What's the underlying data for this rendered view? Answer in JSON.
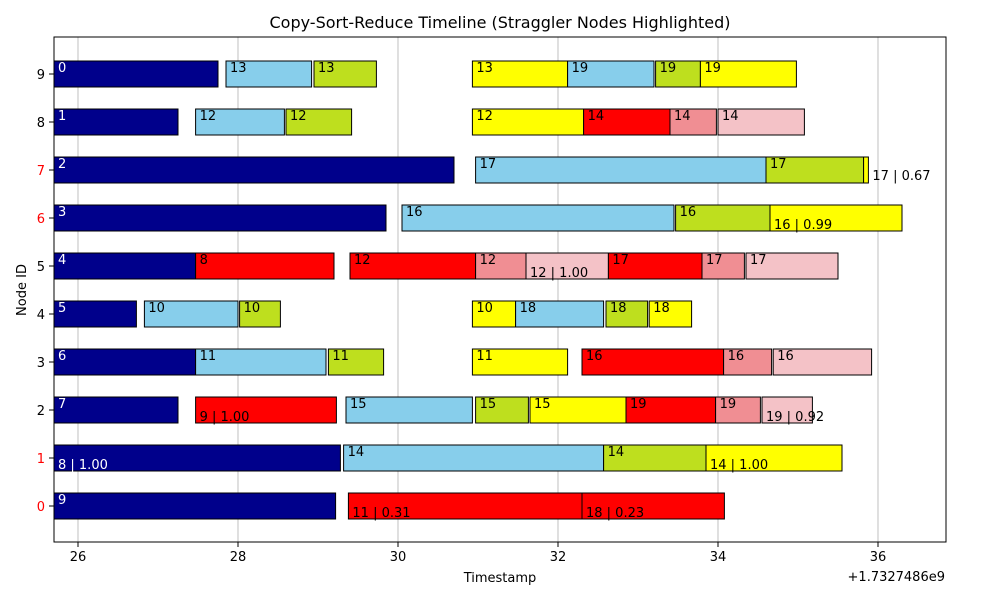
{
  "chart_data": {
    "type": "gantt",
    "title": "Copy-Sort-Reduce Timeline (Straggler Nodes Highlighted)",
    "xlabel": "Timestamp",
    "ylabel": "Node ID",
    "x_offset_label": "+1.7327486e9",
    "xlim": [
      25.7,
      36.85
    ],
    "x_ticks": [
      26,
      28,
      30,
      32,
      34,
      36
    ],
    "y_ticks": [
      0,
      1,
      2,
      3,
      4,
      5,
      6,
      7,
      8,
      9
    ],
    "straggler_nodes": [
      0,
      1,
      6,
      7
    ],
    "grid": "x",
    "colors": {
      "init": "#00008b",
      "copy": "#87ceeb",
      "sort": "#bedf1e",
      "reduce": "#ffff00",
      "straggler": "#ff0000",
      "straggler_sort": "#f08e93",
      "straggler_reduce": "#f4c2c7",
      "straggler_tick": "#ff0000",
      "normal_tick": "#000000"
    },
    "bars": [
      {
        "node": 9,
        "start": 25.7,
        "end": 27.75,
        "phase": "init",
        "label": "0"
      },
      {
        "node": 9,
        "start": 27.85,
        "end": 28.92,
        "phase": "copy",
        "label": "13"
      },
      {
        "node": 9,
        "start": 28.95,
        "end": 29.73,
        "phase": "sort",
        "label": "13"
      },
      {
        "node": 9,
        "start": 30.93,
        "end": 32.12,
        "phase": "reduce",
        "label": "13"
      },
      {
        "node": 9,
        "start": 32.12,
        "end": 33.2,
        "phase": "copy",
        "label": "19"
      },
      {
        "node": 9,
        "start": 33.22,
        "end": 33.78,
        "phase": "sort",
        "label": "19"
      },
      {
        "node": 9,
        "start": 33.78,
        "end": 34.98,
        "phase": "reduce",
        "label": "19"
      },
      {
        "node": 8,
        "start": 25.7,
        "end": 27.25,
        "phase": "init",
        "label": "1"
      },
      {
        "node": 8,
        "start": 27.47,
        "end": 28.58,
        "phase": "copy",
        "label": "12"
      },
      {
        "node": 8,
        "start": 28.6,
        "end": 29.42,
        "phase": "sort",
        "label": "12"
      },
      {
        "node": 8,
        "start": 30.93,
        "end": 32.32,
        "phase": "reduce",
        "label": "12"
      },
      {
        "node": 8,
        "start": 32.32,
        "end": 33.4,
        "phase": "straggler",
        "label": "14"
      },
      {
        "node": 8,
        "start": 33.4,
        "end": 33.98,
        "phase": "straggler_sort",
        "label": "14"
      },
      {
        "node": 8,
        "start": 34.0,
        "end": 35.08,
        "phase": "straggler_reduce",
        "label": "14"
      },
      {
        "node": 7,
        "start": 25.7,
        "end": 30.7,
        "phase": "init",
        "label": "2"
      },
      {
        "node": 7,
        "start": 30.97,
        "end": 34.6,
        "phase": "copy",
        "label": "17"
      },
      {
        "node": 7,
        "start": 34.6,
        "end": 35.82,
        "phase": "sort",
        "label": "17"
      },
      {
        "node": 7,
        "start": 35.82,
        "end": 35.88,
        "phase": "reduce",
        "label": "17 | 0.67",
        "label_outside": true
      },
      {
        "node": 6,
        "start": 25.7,
        "end": 29.85,
        "phase": "init",
        "label": "3"
      },
      {
        "node": 6,
        "start": 30.05,
        "end": 33.45,
        "phase": "copy",
        "label": "16"
      },
      {
        "node": 6,
        "start": 33.47,
        "end": 34.65,
        "phase": "sort",
        "label": "16"
      },
      {
        "node": 6,
        "start": 34.65,
        "end": 36.3,
        "phase": "reduce",
        "label": "16 | 0.99",
        "label_pos": "bottom"
      },
      {
        "node": 5,
        "start": 25.7,
        "end": 27.47,
        "phase": "init",
        "label": "4"
      },
      {
        "node": 5,
        "start": 27.47,
        "end": 29.2,
        "phase": "straggler",
        "label": "8"
      },
      {
        "node": 5,
        "start": 29.4,
        "end": 30.97,
        "phase": "straggler",
        "label": "12"
      },
      {
        "node": 5,
        "start": 30.97,
        "end": 31.6,
        "phase": "straggler_sort",
        "label": "12"
      },
      {
        "node": 5,
        "start": 31.6,
        "end": 32.63,
        "phase": "straggler_reduce",
        "label": "12 | 1.00",
        "label_pos": "bottom"
      },
      {
        "node": 5,
        "start": 32.63,
        "end": 33.8,
        "phase": "straggler",
        "label": "17"
      },
      {
        "node": 5,
        "start": 33.8,
        "end": 34.33,
        "phase": "straggler_sort",
        "label": "17"
      },
      {
        "node": 5,
        "start": 34.35,
        "end": 35.5,
        "phase": "straggler_reduce",
        "label": "17"
      },
      {
        "node": 4,
        "start": 25.7,
        "end": 26.73,
        "phase": "init",
        "label": "5"
      },
      {
        "node": 4,
        "start": 26.83,
        "end": 28.0,
        "phase": "copy",
        "label": "10"
      },
      {
        "node": 4,
        "start": 28.02,
        "end": 28.53,
        "phase": "sort",
        "label": "10"
      },
      {
        "node": 4,
        "start": 30.93,
        "end": 31.47,
        "phase": "reduce",
        "label": "10"
      },
      {
        "node": 4,
        "start": 31.47,
        "end": 32.57,
        "phase": "copy",
        "label": "18"
      },
      {
        "node": 4,
        "start": 32.6,
        "end": 33.12,
        "phase": "sort",
        "label": "18"
      },
      {
        "node": 4,
        "start": 33.14,
        "end": 33.67,
        "phase": "reduce",
        "label": "18"
      },
      {
        "node": 3,
        "start": 25.7,
        "end": 27.47,
        "phase": "init",
        "label": "6"
      },
      {
        "node": 3,
        "start": 27.47,
        "end": 29.1,
        "phase": "copy",
        "label": "11"
      },
      {
        "node": 3,
        "start": 29.13,
        "end": 29.82,
        "phase": "sort",
        "label": "11"
      },
      {
        "node": 3,
        "start": 30.93,
        "end": 32.12,
        "phase": "reduce",
        "label": "11"
      },
      {
        "node": 3,
        "start": 32.3,
        "end": 34.07,
        "phase": "straggler",
        "label": "16"
      },
      {
        "node": 3,
        "start": 34.07,
        "end": 34.67,
        "phase": "straggler_sort",
        "label": "16"
      },
      {
        "node": 3,
        "start": 34.69,
        "end": 35.92,
        "phase": "straggler_reduce",
        "label": "16"
      },
      {
        "node": 2,
        "start": 25.7,
        "end": 27.25,
        "phase": "init",
        "label": "7"
      },
      {
        "node": 2,
        "start": 27.47,
        "end": 29.23,
        "phase": "straggler",
        "label": "9 | 1.00",
        "label_pos": "bottom"
      },
      {
        "node": 2,
        "start": 29.35,
        "end": 30.93,
        "phase": "copy",
        "label": "15"
      },
      {
        "node": 2,
        "start": 30.97,
        "end": 31.63,
        "phase": "sort",
        "label": "15"
      },
      {
        "node": 2,
        "start": 31.65,
        "end": 32.85,
        "phase": "reduce",
        "label": "15"
      },
      {
        "node": 2,
        "start": 32.85,
        "end": 33.97,
        "phase": "straggler",
        "label": "19"
      },
      {
        "node": 2,
        "start": 33.97,
        "end": 34.53,
        "phase": "straggler_sort",
        "label": "19"
      },
      {
        "node": 2,
        "start": 34.55,
        "end": 35.18,
        "phase": "straggler_reduce",
        "label": "19 | 0.92",
        "label_pos": "bottom"
      },
      {
        "node": 1,
        "start": 25.7,
        "end": 29.28,
        "phase": "init",
        "label": "8 | 1.00",
        "label_pos": "bottom"
      },
      {
        "node": 1,
        "start": 29.32,
        "end": 32.57,
        "phase": "copy",
        "label": "14"
      },
      {
        "node": 1,
        "start": 32.57,
        "end": 33.85,
        "phase": "sort",
        "label": "14"
      },
      {
        "node": 1,
        "start": 33.85,
        "end": 35.55,
        "phase": "reduce",
        "label": "14 | 1.00",
        "label_pos": "bottom"
      },
      {
        "node": 0,
        "start": 25.7,
        "end": 29.22,
        "phase": "init",
        "label": "9"
      },
      {
        "node": 0,
        "start": 29.38,
        "end": 32.3,
        "phase": "straggler",
        "label": "11 | 0.31",
        "label_pos": "bottom"
      },
      {
        "node": 0,
        "start": 32.3,
        "end": 34.08,
        "phase": "straggler",
        "label": "18 | 0.23",
        "label_pos": "bottom"
      }
    ]
  }
}
